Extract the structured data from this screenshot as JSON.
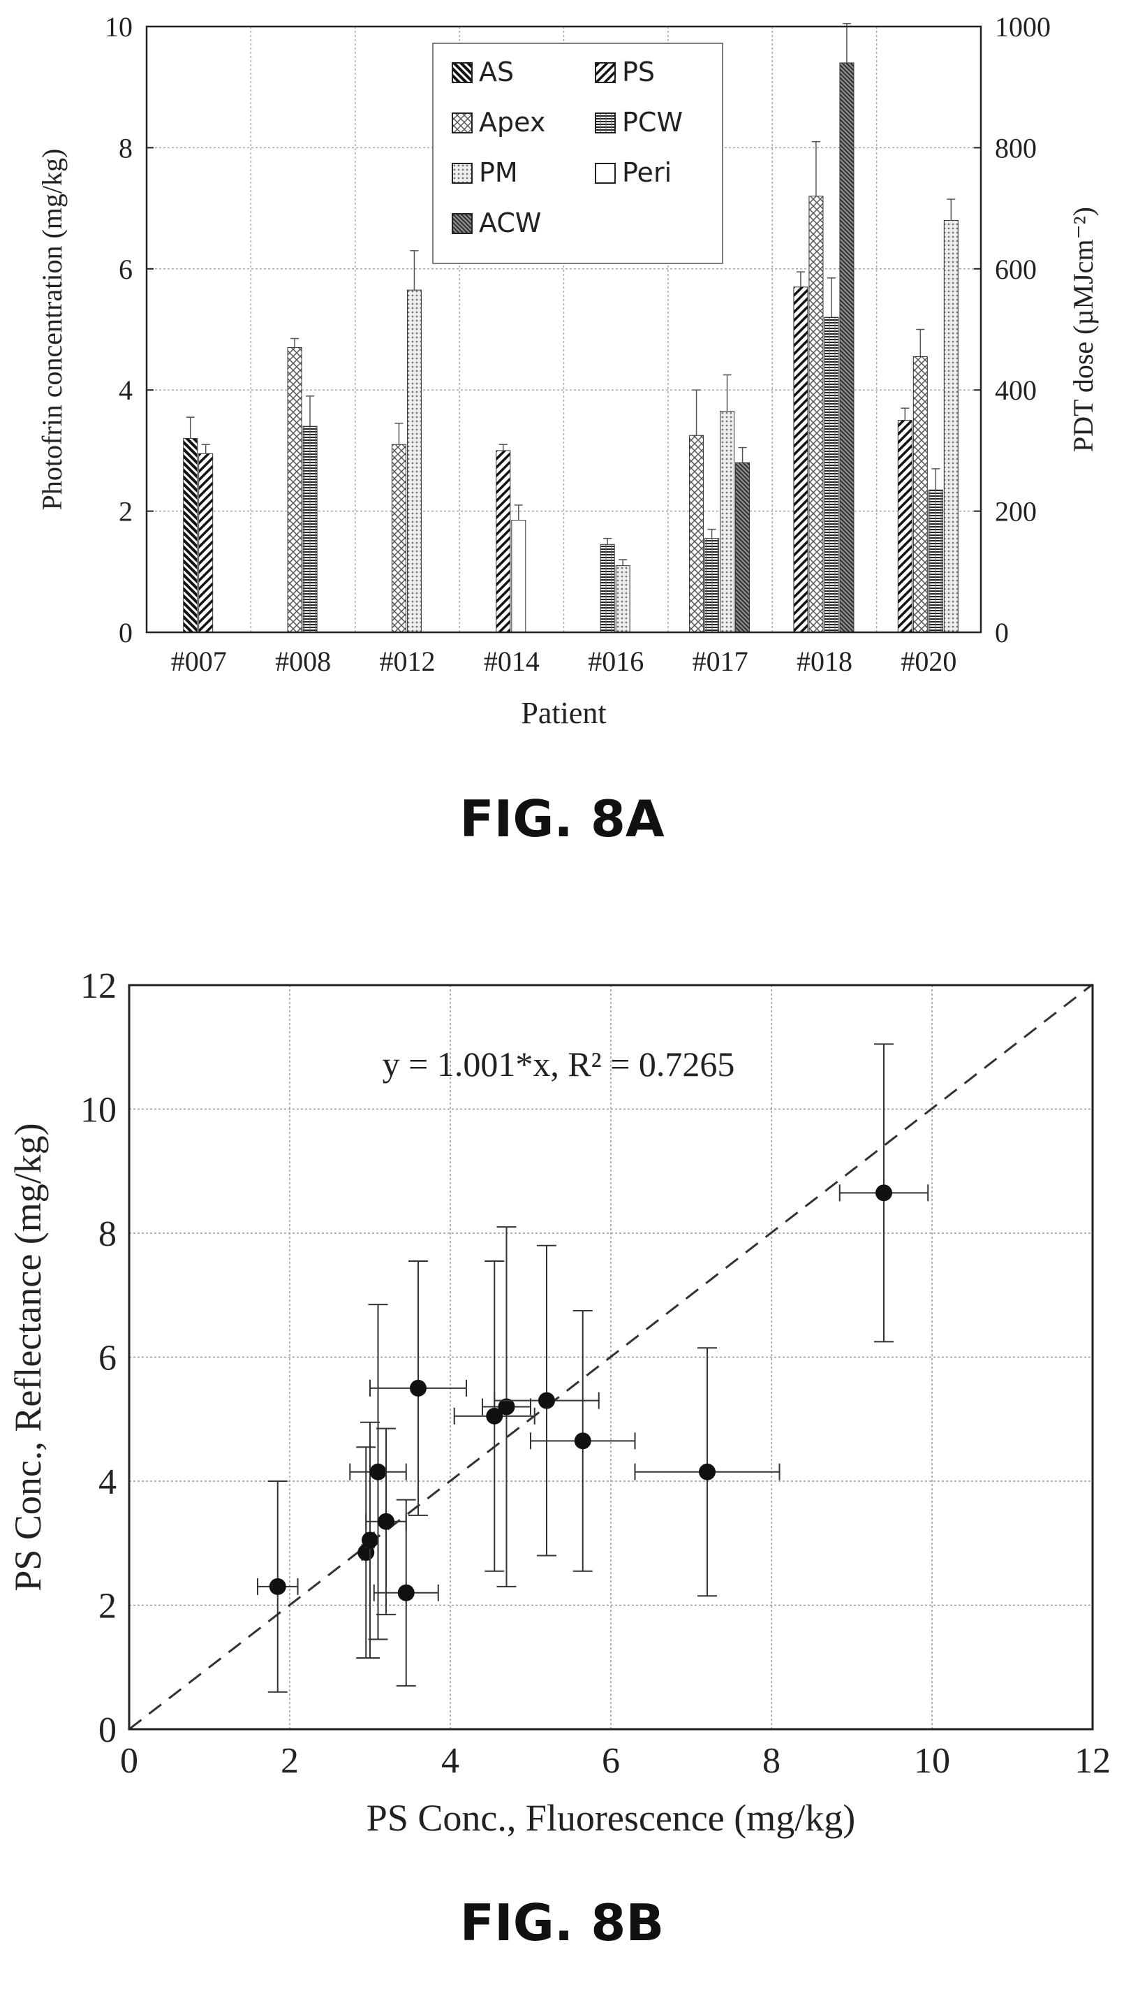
{
  "figA": {
    "caption": "FIG. 8A",
    "chart_data": {
      "type": "bar",
      "xlabel": "Patient",
      "ylabel": "Photofrin concentration (mg/kg)",
      "y2label": "PDT dose (µMJcm⁻²)",
      "ylim": [
        0,
        10
      ],
      "y2lim": [
        0,
        1000
      ],
      "yticks": [
        0,
        2,
        4,
        6,
        8,
        10
      ],
      "y2ticks": [
        0,
        200,
        400,
        600,
        800,
        1000
      ],
      "grid": true,
      "legend_position": "top-center",
      "categories": [
        "#007",
        "#008",
        "#012",
        "#014",
        "#016",
        "#017",
        "#018",
        "#020"
      ],
      "series": [
        {
          "name": "AS",
          "pattern": "diag-back-dense",
          "values": [
            3.2,
            null,
            null,
            null,
            null,
            null,
            null,
            null
          ],
          "errors": [
            0.35,
            null,
            null,
            null,
            null,
            null,
            null,
            null
          ]
        },
        {
          "name": "PS",
          "pattern": "diag-fwd",
          "values": [
            2.95,
            null,
            null,
            3.0,
            null,
            null,
            5.7,
            3.5
          ],
          "errors": [
            0.15,
            null,
            null,
            0.1,
            null,
            null,
            0.25,
            0.2
          ]
        },
        {
          "name": "Apex",
          "pattern": "crosshatch",
          "values": [
            null,
            4.7,
            3.1,
            null,
            null,
            3.25,
            7.2,
            4.55
          ],
          "errors": [
            null,
            0.15,
            0.35,
            null,
            null,
            0.75,
            0.9,
            0.45
          ]
        },
        {
          "name": "PCW",
          "pattern": "hlines",
          "values": [
            null,
            3.4,
            null,
            null,
            1.45,
            1.55,
            5.2,
            2.35
          ],
          "errors": [
            null,
            0.5,
            null,
            null,
            0.1,
            0.15,
            0.65,
            0.35
          ]
        },
        {
          "name": "PM",
          "pattern": "dots",
          "values": [
            null,
            null,
            5.65,
            null,
            1.1,
            3.65,
            null,
            6.8
          ],
          "errors": [
            null,
            null,
            0.65,
            null,
            0.1,
            0.6,
            null,
            0.35
          ]
        },
        {
          "name": "Peri",
          "pattern": "blank",
          "values": [
            null,
            null,
            null,
            1.85,
            null,
            null,
            null,
            null
          ],
          "errors": [
            null,
            null,
            null,
            0.25,
            null,
            null,
            null,
            null
          ]
        },
        {
          "name": "ACW",
          "pattern": "diag-back-fine",
          "values": [
            null,
            null,
            null,
            null,
            null,
            2.8,
            9.4,
            null
          ],
          "errors": [
            null,
            null,
            null,
            null,
            null,
            0.25,
            0.65,
            null
          ]
        }
      ]
    }
  },
  "figB": {
    "caption": "FIG. 8B",
    "chart_data": {
      "type": "scatter",
      "xlabel": "PS Conc., Fluorescence (mg/kg)",
      "ylabel": "PS Conc., Reflectance (mg/kg)",
      "xlim": [
        0,
        12
      ],
      "ylim": [
        0,
        12
      ],
      "xticks": [
        0,
        2,
        4,
        6,
        8,
        10,
        12
      ],
      "yticks": [
        0,
        2,
        4,
        6,
        8,
        10,
        12
      ],
      "grid": true,
      "annotation": "y = 1.001*x, R² = 0.7265",
      "fit": {
        "slope": 1.001,
        "intercept": 0,
        "r2": 0.7265
      },
      "points": [
        {
          "x": 1.85,
          "y": 2.3,
          "xerr": 0.25,
          "yerr": 1.7
        },
        {
          "x": 2.95,
          "y": 2.85,
          "xerr": 0.05,
          "yerr": 1.7
        },
        {
          "x": 3.0,
          "y": 3.05,
          "xerr": 0.05,
          "yerr": 1.9
        },
        {
          "x": 3.1,
          "y": 4.15,
          "xerr": 0.35,
          "yerr": 2.7
        },
        {
          "x": 3.2,
          "y": 3.35,
          "xerr": 0.25,
          "yerr": 1.5
        },
        {
          "x": 3.45,
          "y": 2.2,
          "xerr": 0.4,
          "yerr": 1.5
        },
        {
          "x": 3.6,
          "y": 5.5,
          "xerr": 0.6,
          "yerr": 2.05
        },
        {
          "x": 4.55,
          "y": 5.05,
          "xerr": 0.5,
          "yerr": 2.5
        },
        {
          "x": 4.7,
          "y": 5.2,
          "xerr": 0.3,
          "yerr": 2.9
        },
        {
          "x": 5.2,
          "y": 5.3,
          "xerr": 0.65,
          "yerr": 2.5
        },
        {
          "x": 5.65,
          "y": 4.65,
          "xerr": 0.65,
          "yerr": 2.1
        },
        {
          "x": 7.2,
          "y": 4.15,
          "xerr": 0.9,
          "yerr": 2.0
        },
        {
          "x": 9.4,
          "y": 8.65,
          "xerr": 0.55,
          "yerr": 2.4
        }
      ]
    }
  }
}
